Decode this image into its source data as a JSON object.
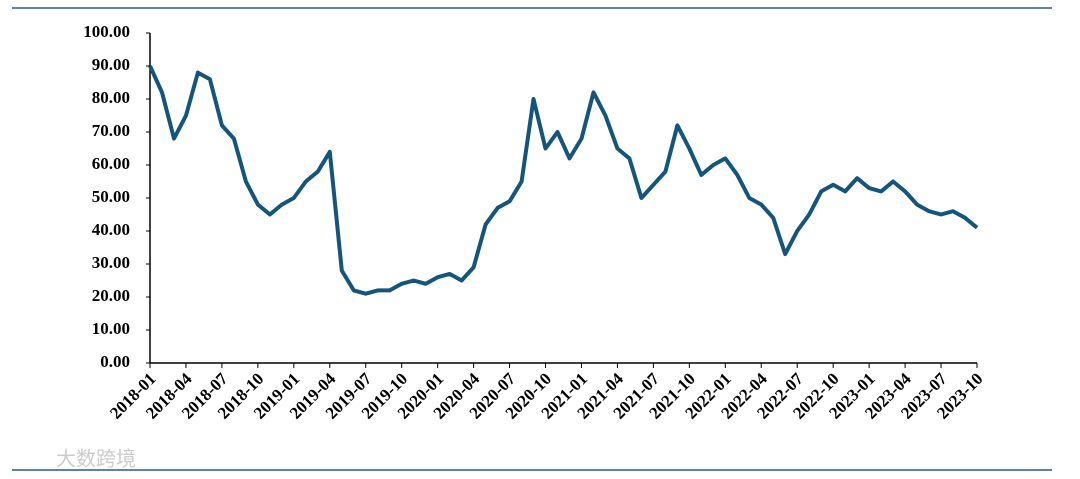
{
  "chart_data": {
    "type": "line",
    "x": [
      "2018-01",
      null,
      null,
      "2018-04",
      null,
      null,
      "2018-07",
      null,
      null,
      "2018-10",
      null,
      null,
      "2019-01",
      null,
      null,
      "2019-04",
      null,
      null,
      "2019-07",
      null,
      null,
      "2019-10",
      null,
      null,
      "2020-01",
      null,
      null,
      "2020-04",
      null,
      null,
      "2020-07",
      null,
      null,
      "2020-10",
      null,
      null,
      "2021-01",
      null,
      null,
      "2021-04",
      null,
      null,
      "2021-07",
      null,
      null,
      "2021-10",
      null,
      null,
      "2022-01",
      null,
      null,
      "2022-04",
      null,
      null,
      "2022-07",
      null,
      null,
      "2022-10",
      null,
      null,
      "2023-01",
      null,
      null,
      "2023-04",
      null,
      null,
      "2023-07",
      null,
      null,
      "2023-10"
    ],
    "values": [
      90,
      82,
      68,
      75,
      88,
      86,
      72,
      68,
      55,
      48,
      45,
      48,
      50,
      55,
      58,
      64,
      28,
      22,
      21,
      22,
      22,
      24,
      25,
      24,
      26,
      27,
      25,
      29,
      42,
      47,
      49,
      55,
      80,
      65,
      70,
      62,
      68,
      82,
      75,
      65,
      62,
      50,
      54,
      58,
      72,
      65,
      57,
      60,
      62,
      57,
      50,
      48,
      44,
      33,
      40,
      45,
      52,
      54,
      52,
      56,
      53,
      52,
      55,
      52,
      48,
      46,
      45,
      46,
      44,
      41
    ],
    "color": "#15557c",
    "ylim": [
      0,
      100
    ],
    "yticks": [
      {
        "value": 0,
        "label": "0.00"
      },
      {
        "value": 10,
        "label": "10.00"
      },
      {
        "value": 20,
        "label": "20.00"
      },
      {
        "value": 30,
        "label": "30.00"
      },
      {
        "value": 40,
        "label": "40.00"
      },
      {
        "value": 50,
        "label": "50.00"
      },
      {
        "value": 60,
        "label": "60.00"
      },
      {
        "value": 70,
        "label": "70.00"
      },
      {
        "value": 80,
        "label": "80.00"
      },
      {
        "value": 90,
        "label": "90.00"
      },
      {
        "value": 100,
        "label": "100.00"
      }
    ],
    "grid": false,
    "watermark": "大数跨境"
  }
}
